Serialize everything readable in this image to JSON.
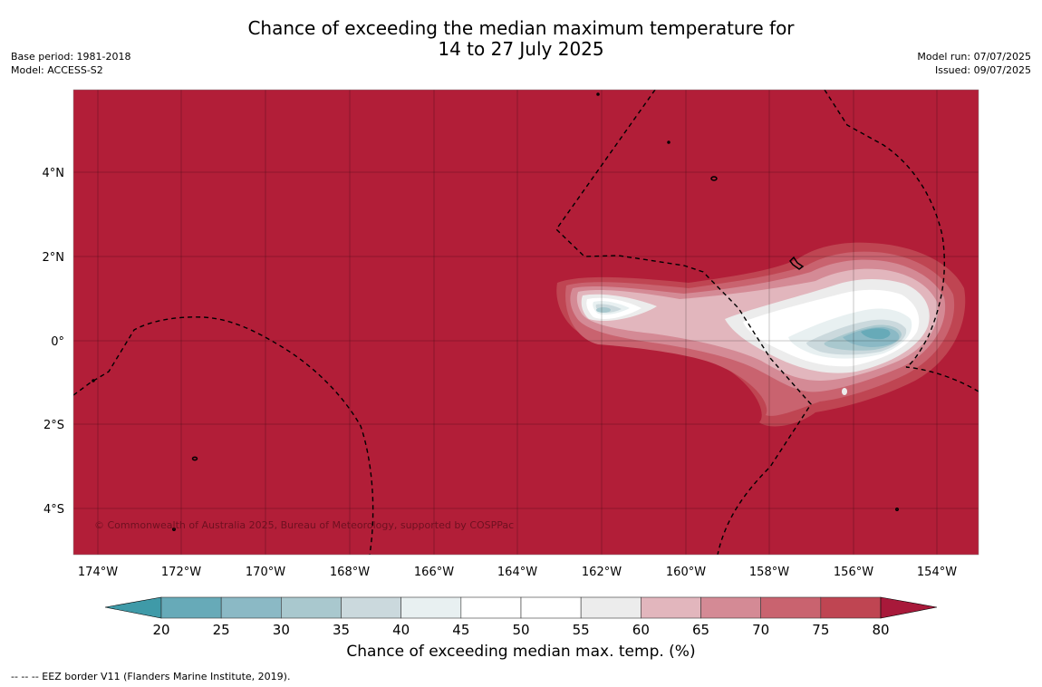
{
  "title": {
    "line1": "Chance of exceeding the median maximum temperature for",
    "line2": "14 to 27 July 2025"
  },
  "meta_left": {
    "base_period": "Base period: 1981-2018",
    "model": "Model: ACCESS-S2"
  },
  "meta_right": {
    "model_run": "Model run: 07/07/2025",
    "issued": "Issued: 09/07/2025"
  },
  "map": {
    "lon_ticks": [
      "174°W",
      "172°W",
      "170°W",
      "168°W",
      "166°W",
      "164°W",
      "162°W",
      "160°W",
      "158°W",
      "156°W",
      "154°W"
    ],
    "lat_ticks": [
      "4°N",
      "2°N",
      "0°",
      "2°S",
      "4°S"
    ],
    "copyright": "© Commonwealth of Australia 2025, Bureau of Meteorology, supported by COSPPac",
    "background_color": "#b21e38"
  },
  "colorbar": {
    "labels": [
      "20",
      "25",
      "30",
      "35",
      "40",
      "45",
      "50",
      "55",
      "60",
      "65",
      "70",
      "75",
      "80"
    ],
    "colors": [
      "#67aab8",
      "#8bb9c5",
      "#a9c8ce",
      "#cbd9dd",
      "#e8f0f1",
      "#ffffff",
      "#ffffff",
      "#ececec",
      "#e2b6bd",
      "#d48a95",
      "#c9636f",
      "#bf4552"
    ],
    "under_color": "#3f9aa8",
    "over_color": "#a8193a",
    "title": "Chance of exceeding median max. temp. (%)"
  },
  "footer": "--  --  -- EEZ border V11 (Flanders Marine Institute, 2019)."
}
